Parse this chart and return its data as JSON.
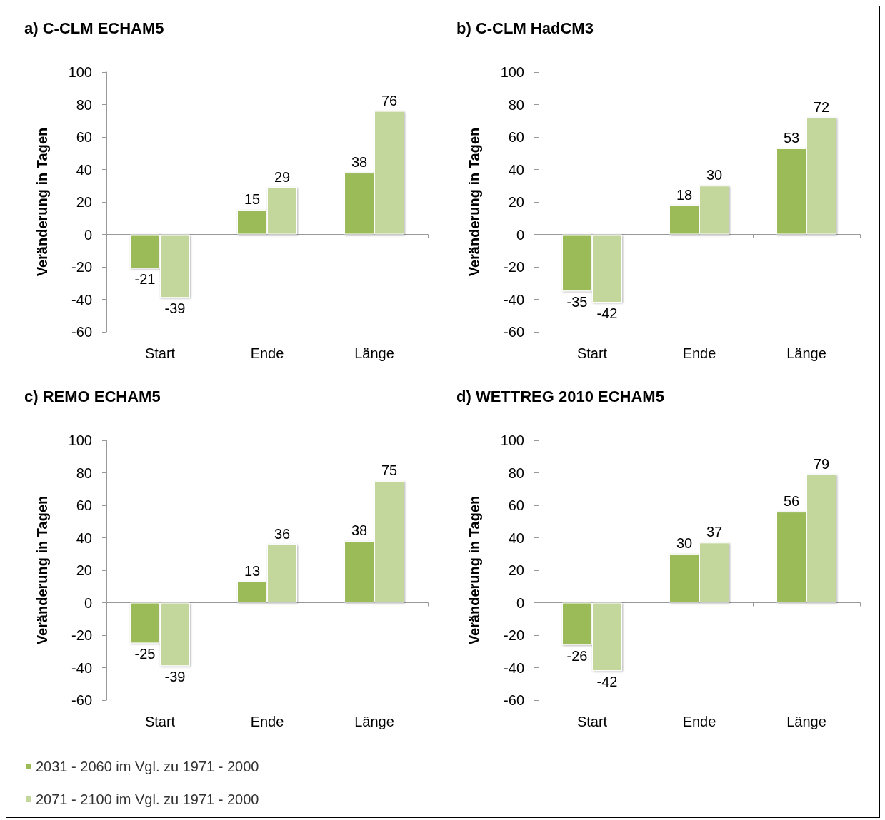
{
  "chart_data": [
    {
      "type": "bar",
      "title": "a) C-CLM ECHAM5",
      "ylabel": "Veränderung in Tagen",
      "categories": [
        "Start",
        "Ende",
        "Länge"
      ],
      "ylim": [
        -60,
        100
      ],
      "yticks": [
        -60,
        -40,
        -20,
        0,
        20,
        40,
        60,
        80,
        100
      ],
      "legend": false,
      "data_labels": true,
      "series": [
        {
          "color": "#9bbb59",
          "values": [
            -21,
            15,
            38
          ]
        },
        {
          "color": "#c3d69b",
          "values": [
            -39,
            29,
            76
          ]
        }
      ]
    },
    {
      "type": "bar",
      "title": "b) C-CLM HadCM3",
      "ylabel": "Veränderung in Tagen",
      "categories": [
        "Start",
        "Ende",
        "Länge"
      ],
      "ylim": [
        -60,
        100
      ],
      "yticks": [
        -60,
        -40,
        -20,
        0,
        20,
        40,
        60,
        80,
        100
      ],
      "legend": false,
      "data_labels": true,
      "series": [
        {
          "color": "#9bbb59",
          "values": [
            -35,
            18,
            53
          ]
        },
        {
          "color": "#c3d69b",
          "values": [
            -42,
            30,
            72
          ]
        }
      ]
    },
    {
      "type": "bar",
      "title": "c) REMO ECHAM5",
      "ylabel": "Veränderung in Tagen",
      "categories": [
        "Start",
        "Ende",
        "Länge"
      ],
      "ylim": [
        -60,
        100
      ],
      "yticks": [
        -60,
        -40,
        -20,
        0,
        20,
        40,
        60,
        80,
        100
      ],
      "legend": "bottom left",
      "data_labels": true,
      "series": [
        {
          "name": "2031 - 2060 im Vgl. zu 1971 - 2000",
          "color": "#9bbb59",
          "values": [
            -25,
            13,
            38
          ]
        },
        {
          "name": "2071 - 2100 im Vgl. zu 1971 - 2000",
          "color": "#c3d69b",
          "values": [
            -39,
            36,
            75
          ]
        }
      ]
    },
    {
      "type": "bar",
      "title": "d) WETTREG 2010 ECHAM5",
      "ylabel": "Veränderung in Tagen",
      "categories": [
        "Start",
        "Ende",
        "Länge"
      ],
      "ylim": [
        -60,
        100
      ],
      "yticks": [
        -60,
        -40,
        -20,
        0,
        20,
        40,
        60,
        80,
        100
      ],
      "legend": false,
      "data_labels": true,
      "series": [
        {
          "color": "#9bbb59",
          "values": [
            -26,
            30,
            56
          ]
        },
        {
          "color": "#c3d69b",
          "values": [
            -42,
            37,
            79
          ]
        }
      ]
    }
  ]
}
